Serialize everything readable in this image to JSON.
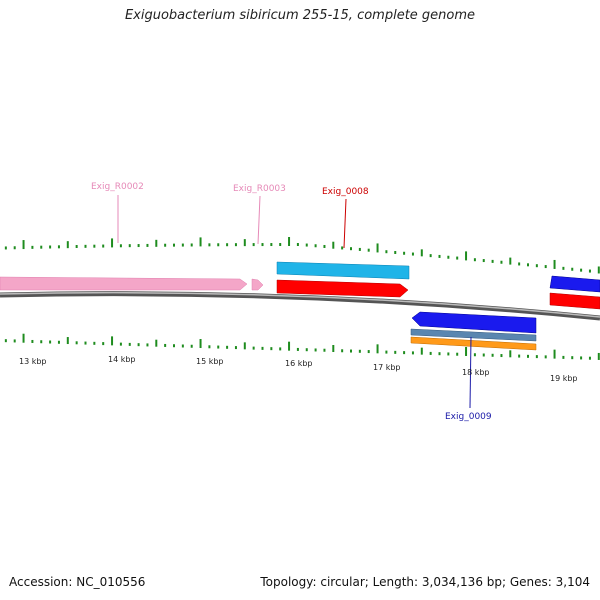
{
  "title": "Exiguobacterium sibiricum 255-15, complete genome",
  "footer": {
    "accession": "Accession: NC_010556",
    "summary": "Topology: circular; Length: 3,034,136 bp; Genes: 3,104"
  },
  "colors": {
    "tick": "#1e8c1e",
    "backbone": "#808080",
    "rrna": "#f4a6c8",
    "rrna_label": "#e68ab8",
    "cyan_gene": "#20b4e8",
    "red_gene": "#ff0000",
    "blue_gene": "#1a1aee",
    "steel_gene": "#5a86b0",
    "orange_gene": "#ff9a1a",
    "red_label": "#cc0000",
    "blue_label": "#1a1aa8"
  },
  "tick_labels": [
    "13 kbp",
    "14 kbp",
    "15 kbp",
    "16 kbp",
    "17 kbp",
    "18 kbp",
    "19 kbp"
  ],
  "gene_labels": {
    "r0002": "Exig_R0002",
    "r0003": "Exig_R0003",
    "g0008": "Exig_0008",
    "g0009": "Exig_0009"
  }
}
